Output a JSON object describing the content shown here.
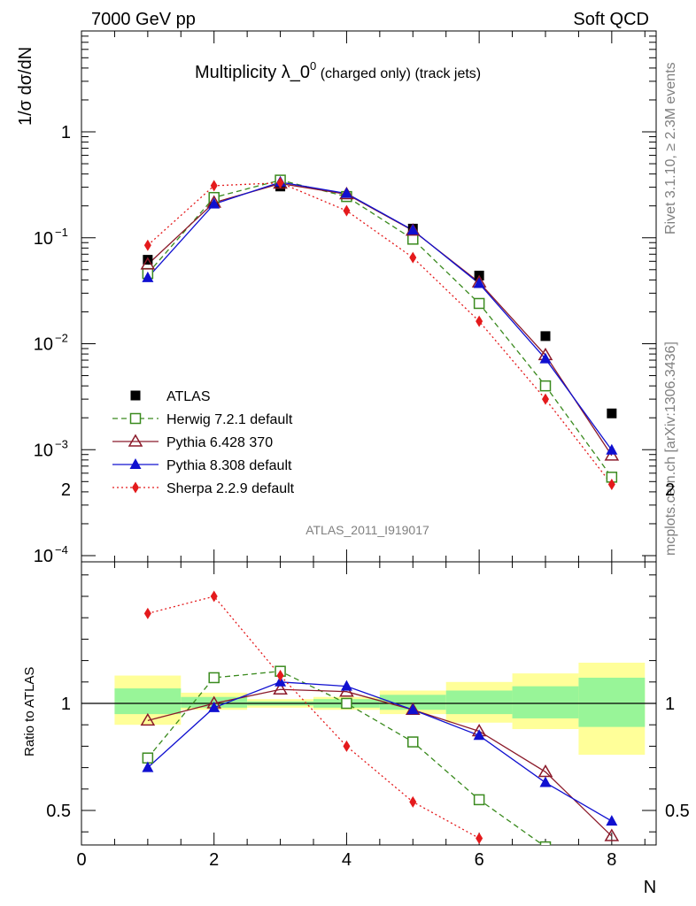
{
  "header": {
    "left": "7000 GeV pp",
    "right": "Soft QCD"
  },
  "side_labels": {
    "rivet": "Rivet 3.1.10, ≥ 2.3M events",
    "mcplots": "mcplots.cern.ch [arXiv:1306.3436]"
  },
  "watermark": "ATLAS_2011_I919017",
  "colors": {
    "ATLAS": "#000000",
    "Herwig": "#3a8a1e",
    "Pythia6": "#8b1a2a",
    "Pythia8": "#1010d0",
    "Sherpa": "#e41a1c",
    "band_inner": "#98f598",
    "band_outer": "#ffff99"
  },
  "chart_data": [
    {
      "type": "line",
      "title_main": "Multiplicity λ_0",
      "title_sup": "0",
      "title_suffix": " (charged only) (track jets)",
      "ylabel": "1/σ dσ/dN",
      "yscale": "log",
      "ylim": [
        0.0001,
        10
      ],
      "xlim": [
        0,
        8.67
      ],
      "y_ticks": [
        {
          "value": 0.0001,
          "base": "10",
          "exp": "−4"
        },
        {
          "value": 0.001,
          "base": "10",
          "exp": "−3"
        },
        {
          "value": 0.01,
          "base": "10",
          "exp": "−2"
        },
        {
          "value": 0.1,
          "base": "10",
          "exp": "−1"
        },
        {
          "value": 1,
          "base": "1",
          "exp": ""
        }
      ],
      "legend_position": "left-middle",
      "series": [
        {
          "name": "ATLAS",
          "key": "ATLAS",
          "marker": "square-filled",
          "line": "none",
          "x": [
            1,
            2,
            3,
            4,
            5,
            6,
            7,
            8
          ],
          "y": [
            0.062,
            0.215,
            0.305,
            0.245,
            0.122,
            0.044,
            0.0118,
            0.0022
          ]
        },
        {
          "name": "Herwig 7.2.1 default",
          "key": "Herwig",
          "marker": "square-open",
          "line": "dashed",
          "x": [
            1,
            2,
            3,
            4,
            5,
            6,
            7,
            8
          ],
          "y": [
            0.046,
            0.24,
            0.35,
            0.245,
            0.097,
            0.024,
            0.004,
            0.00055
          ]
        },
        {
          "name": "Pythia 6.428 370",
          "key": "Pythia6",
          "marker": "triangle-open",
          "line": "solid",
          "x": [
            1,
            2,
            3,
            4,
            5,
            6,
            7,
            8
          ],
          "y": [
            0.056,
            0.215,
            0.325,
            0.258,
            0.117,
            0.038,
            0.0078,
            0.00088
          ]
        },
        {
          "name": "Pythia 8.308 default",
          "key": "Pythia8",
          "marker": "triangle-filled",
          "line": "solid",
          "x": [
            1,
            2,
            3,
            4,
            5,
            6,
            7,
            8
          ],
          "y": [
            0.042,
            0.208,
            0.335,
            0.262,
            0.118,
            0.037,
            0.0072,
            0.00099
          ]
        },
        {
          "name": "Sherpa 2.2.9 default",
          "key": "Sherpa",
          "marker": "diamond-filled",
          "line": "dotted",
          "x": [
            1,
            2,
            3,
            4,
            5,
            6,
            7,
            8
          ],
          "y": [
            0.085,
            0.31,
            0.33,
            0.18,
            0.065,
            0.0163,
            0.003,
            0.00047
          ]
        }
      ]
    },
    {
      "type": "line",
      "ylabel": "Ratio to ATLAS",
      "xlabel": "N",
      "ylim": [
        0.35,
        2.3
      ],
      "xlim": [
        0,
        8.67
      ],
      "y_ticks": [
        0.5,
        1,
        2
      ],
      "x_ticks": [
        0,
        2,
        4,
        6,
        8
      ],
      "reference_line": 1,
      "bands": [
        {
          "x0": 0.5,
          "x1": 1.5,
          "inner": [
            0.95,
            1.07
          ],
          "outer": [
            0.9,
            1.13
          ]
        },
        {
          "x0": 1.5,
          "x1": 2.5,
          "inner": [
            0.98,
            1.03
          ],
          "outer": [
            0.97,
            1.05
          ]
        },
        {
          "x0": 2.5,
          "x1": 3.5,
          "inner": [
            0.99,
            1.01
          ],
          "outer": [
            0.98,
            1.02
          ]
        },
        {
          "x0": 3.5,
          "x1": 4.5,
          "inner": [
            0.98,
            1.02
          ],
          "outer": [
            0.97,
            1.03
          ]
        },
        {
          "x0": 4.5,
          "x1": 5.5,
          "inner": [
            0.97,
            1.04
          ],
          "outer": [
            0.95,
            1.06
          ]
        },
        {
          "x0": 5.5,
          "x1": 6.5,
          "inner": [
            0.95,
            1.06
          ],
          "outer": [
            0.91,
            1.1
          ]
        },
        {
          "x0": 6.5,
          "x1": 7.5,
          "inner": [
            0.93,
            1.08
          ],
          "outer": [
            0.88,
            1.14
          ]
        },
        {
          "x0": 7.5,
          "x1": 8.5,
          "inner": [
            0.89,
            1.12
          ],
          "outer": [
            0.76,
            1.19
          ]
        }
      ],
      "series": [
        {
          "name": "Herwig 7.2.1 default",
          "key": "Herwig",
          "marker": "square-open",
          "line": "dashed",
          "x": [
            1,
            2,
            3,
            4,
            5,
            6,
            7
          ],
          "y": [
            0.745,
            1.12,
            1.15,
            1.0,
            0.82,
            0.55,
            0.33
          ]
        },
        {
          "name": "Pythia 6.428 370",
          "key": "Pythia6",
          "marker": "triangle-open",
          "line": "solid",
          "x": [
            1,
            2,
            3,
            4,
            5,
            6,
            7,
            8
          ],
          "y": [
            0.92,
            1.0,
            1.065,
            1.055,
            0.97,
            0.87,
            0.68,
            0.38
          ]
        },
        {
          "name": "Pythia 8.308 default",
          "key": "Pythia8",
          "marker": "triangle-filled",
          "line": "solid",
          "x": [
            1,
            2,
            3,
            4,
            5,
            6,
            7,
            8
          ],
          "y": [
            0.7,
            0.98,
            1.1,
            1.08,
            0.97,
            0.85,
            0.63,
            0.45
          ]
        },
        {
          "name": "Sherpa 2.2.9 default",
          "key": "Sherpa",
          "marker": "diamond-filled",
          "line": "dotted",
          "x": [
            1,
            2,
            3,
            4,
            5,
            6
          ],
          "y": [
            1.42,
            1.5,
            1.13,
            0.8,
            0.54,
            0.37
          ]
        }
      ]
    }
  ]
}
